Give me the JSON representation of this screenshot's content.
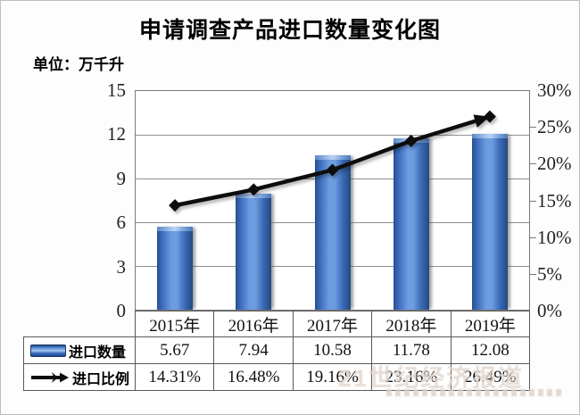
{
  "title": "申请调查产品进口数量变化图",
  "unit_label": "单位：万千升",
  "chart_data": {
    "type": "bar",
    "subtype": "combo-bar-line",
    "categories": [
      "2015年",
      "2016年",
      "2017年",
      "2018年",
      "2019年"
    ],
    "series": [
      {
        "name": "进口数量",
        "type": "bar",
        "axis": "left",
        "values": [
          5.67,
          7.94,
          10.58,
          11.78,
          12.08
        ]
      },
      {
        "name": "进口比例",
        "type": "line",
        "axis": "right",
        "unit": "%",
        "values": [
          14.31,
          16.48,
          19.16,
          23.16,
          26.49
        ]
      }
    ],
    "left_axis": {
      "min": 0,
      "max": 15,
      "ticks": [
        "15",
        "12",
        "9",
        "6",
        "3",
        "0"
      ]
    },
    "right_axis": {
      "min": 0,
      "max": 30,
      "ticks": [
        "30%",
        "25%",
        "20%",
        "15%",
        "10%",
        "5%",
        "0%"
      ]
    },
    "grid": true,
    "legend_position": "table-left"
  },
  "table": {
    "rows": [
      {
        "label": "进口数量",
        "legend": "bar",
        "values": [
          "5.67",
          "7.94",
          "10.58",
          "11.78",
          "12.08"
        ]
      },
      {
        "label": "进口比例",
        "legend": "line",
        "values": [
          "14.31%",
          "16.48%",
          "19.16%",
          "23.16%",
          "26.49%"
        ]
      }
    ]
  },
  "watermark": {
    "text": "21世纪经济报道"
  },
  "colors": {
    "bar": "#3a6fc4",
    "bar_edge": "#27508f",
    "line": "#0d0d0d",
    "grid": "#8f8f8f",
    "table_border": "#595959"
  }
}
